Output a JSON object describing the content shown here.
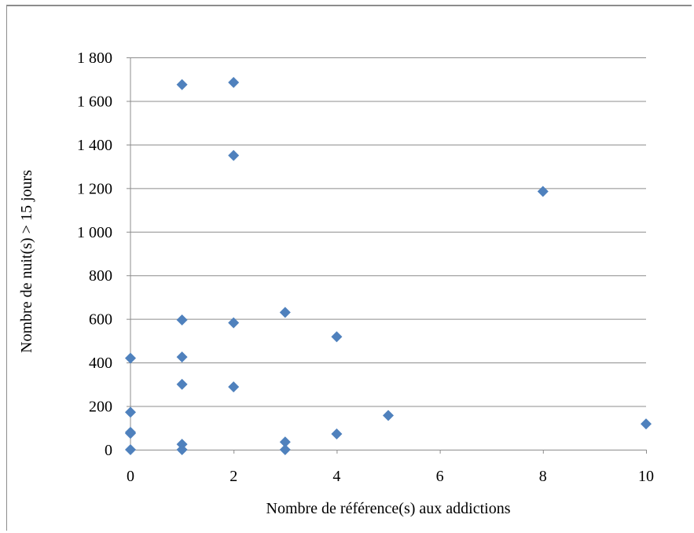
{
  "chart_data": {
    "type": "scatter",
    "title": "",
    "xlabel": "Nombre de référence(s) aux addictions",
    "ylabel": "Nombre de nuit(s) > 15 jours",
    "xlim": [
      0,
      10
    ],
    "ylim": [
      0,
      1800
    ],
    "x_ticks": [
      0,
      2,
      4,
      6,
      8,
      10
    ],
    "y_ticks": [
      0,
      200,
      400,
      600,
      800,
      1000,
      1200,
      1400,
      1600,
      1800
    ],
    "x_tick_labels": [
      "0",
      "2",
      "4",
      "6",
      "8",
      "10"
    ],
    "y_tick_labels": [
      "0",
      "200",
      "400",
      "600",
      "800",
      "1 000",
      "1 200",
      "1 400",
      "1 600",
      "1 800"
    ],
    "grid": "horizontal",
    "legend": "none",
    "marker_color": "#4f81bd",
    "points": [
      {
        "x": 0,
        "y": 420
      },
      {
        "x": 0,
        "y": 172
      },
      {
        "x": 0,
        "y": 80
      },
      {
        "x": 0,
        "y": 75
      },
      {
        "x": 0,
        "y": 0
      },
      {
        "x": 1,
        "y": 1675
      },
      {
        "x": 1,
        "y": 595
      },
      {
        "x": 1,
        "y": 425
      },
      {
        "x": 1,
        "y": 300
      },
      {
        "x": 1,
        "y": 25
      },
      {
        "x": 1,
        "y": 0
      },
      {
        "x": 2,
        "y": 1685
      },
      {
        "x": 2,
        "y": 1350
      },
      {
        "x": 2,
        "y": 582
      },
      {
        "x": 2,
        "y": 288
      },
      {
        "x": 3,
        "y": 630
      },
      {
        "x": 3,
        "y": 35
      },
      {
        "x": 3,
        "y": 0
      },
      {
        "x": 4,
        "y": 518
      },
      {
        "x": 4,
        "y": 72
      },
      {
        "x": 5,
        "y": 157
      },
      {
        "x": 8,
        "y": 1185
      },
      {
        "x": 10,
        "y": 118
      }
    ]
  }
}
